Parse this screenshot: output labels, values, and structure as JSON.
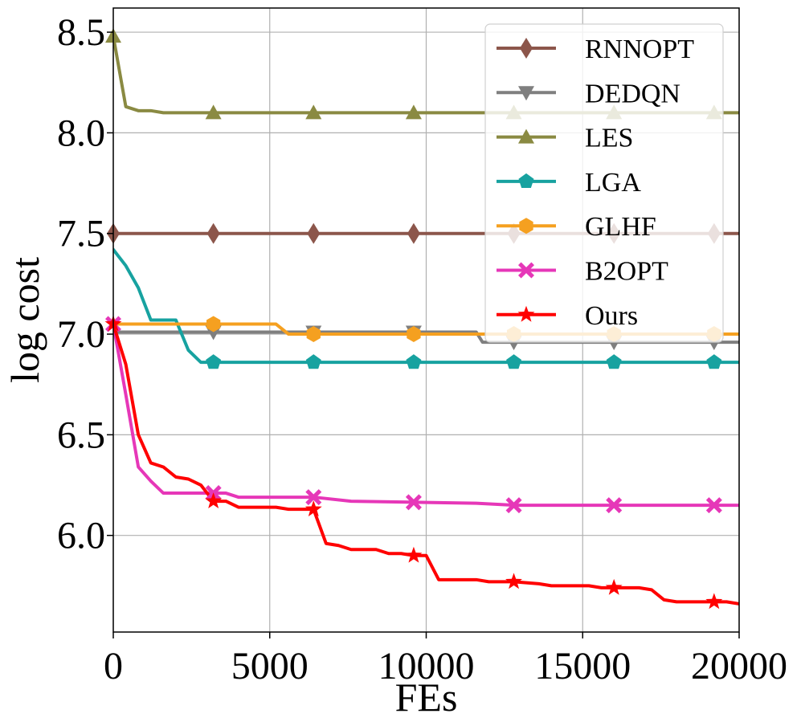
{
  "chart_data": {
    "type": "line",
    "title": "",
    "xlabel": "FEs",
    "ylabel": "log cost",
    "xlim": [
      0,
      20000
    ],
    "ylim": [
      5.52,
      8.62
    ],
    "xticks": [
      0,
      5000,
      10000,
      15000,
      20000
    ],
    "xtick_labels": [
      "0",
      "5000",
      "10000",
      "15000",
      "20000"
    ],
    "yticks": [
      6.0,
      6.5,
      7.0,
      7.5,
      8.0,
      8.5
    ],
    "ytick_labels": [
      "6.0",
      "6.5",
      "7.0",
      "7.5",
      "8.0",
      "8.5"
    ],
    "grid": true,
    "legend_position": "upper-right",
    "series": [
      {
        "name": "RNNOPT",
        "color": "#8c564b",
        "marker": "diamond",
        "points": [
          [
            0,
            7.5
          ],
          [
            20000,
            7.5
          ]
        ],
        "markers_x": [
          0,
          3200,
          6400,
          9600,
          12800,
          16000,
          19200
        ]
      },
      {
        "name": "DEDQN",
        "color": "#7f7f7f",
        "marker": "triangle-down",
        "points": [
          [
            0,
            7.01
          ],
          [
            11600,
            7.01
          ],
          [
            11800,
            6.96
          ],
          [
            20000,
            6.96
          ]
        ],
        "markers_x": [
          3200,
          6400,
          9600,
          12800,
          16000,
          19200
        ]
      },
      {
        "name": "LES",
        "color": "#8a8a42",
        "marker": "triangle-up",
        "points": [
          [
            0,
            8.48
          ],
          [
            400,
            8.13
          ],
          [
            800,
            8.11
          ],
          [
            1200,
            8.11
          ],
          [
            1600,
            8.1
          ],
          [
            2400,
            8.1
          ],
          [
            20000,
            8.1
          ]
        ],
        "markers_x": [
          0,
          3200,
          6400,
          9600,
          12800,
          16000,
          19200
        ]
      },
      {
        "name": "LGA",
        "color": "#17a2a0",
        "marker": "pentagon",
        "points": [
          [
            0,
            7.42
          ],
          [
            400,
            7.34
          ],
          [
            800,
            7.23
          ],
          [
            1200,
            7.07
          ],
          [
            2000,
            7.07
          ],
          [
            2400,
            6.92
          ],
          [
            2800,
            6.86
          ],
          [
            20000,
            6.86
          ]
        ],
        "markers_x": [
          3200,
          6400,
          9600,
          12800,
          16000,
          19200
        ]
      },
      {
        "name": "GLHF",
        "color": "#f5a020",
        "marker": "hexagon",
        "points": [
          [
            0,
            7.05
          ],
          [
            5200,
            7.05
          ],
          [
            5600,
            7.0
          ],
          [
            20000,
            7.0
          ]
        ],
        "markers_x": [
          3200,
          6400,
          9600,
          12800,
          16000,
          19200
        ]
      },
      {
        "name": "B2OPT",
        "color": "#e637b8",
        "marker": "x-filled",
        "points": [
          [
            0,
            7.05
          ],
          [
            400,
            6.7
          ],
          [
            800,
            6.34
          ],
          [
            1200,
            6.27
          ],
          [
            1600,
            6.21
          ],
          [
            3600,
            6.21
          ],
          [
            4000,
            6.19
          ],
          [
            6400,
            6.19
          ],
          [
            7600,
            6.17
          ],
          [
            9600,
            6.165
          ],
          [
            11600,
            6.16
          ],
          [
            12800,
            6.15
          ],
          [
            20000,
            6.15
          ]
        ],
        "markers_x": [
          0,
          3200,
          6400,
          9600,
          12800,
          16000,
          19200
        ]
      },
      {
        "name": "Ours",
        "color": "#ff0000",
        "marker": "star",
        "points": [
          [
            0,
            7.05
          ],
          [
            400,
            6.85
          ],
          [
            800,
            6.5
          ],
          [
            1200,
            6.36
          ],
          [
            1600,
            6.34
          ],
          [
            2000,
            6.29
          ],
          [
            2400,
            6.28
          ],
          [
            2800,
            6.25
          ],
          [
            3200,
            6.17
          ],
          [
            3600,
            6.17
          ],
          [
            4000,
            6.14
          ],
          [
            5200,
            6.14
          ],
          [
            5600,
            6.13
          ],
          [
            6400,
            6.13
          ],
          [
            6800,
            5.96
          ],
          [
            7200,
            5.95
          ],
          [
            7600,
            5.93
          ],
          [
            8400,
            5.93
          ],
          [
            8800,
            5.91
          ],
          [
            9200,
            5.91
          ],
          [
            9600,
            5.9
          ],
          [
            10000,
            5.9
          ],
          [
            10400,
            5.78
          ],
          [
            11600,
            5.78
          ],
          [
            12000,
            5.77
          ],
          [
            12800,
            5.77
          ],
          [
            13600,
            5.76
          ],
          [
            14000,
            5.75
          ],
          [
            15200,
            5.75
          ],
          [
            15600,
            5.74
          ],
          [
            16800,
            5.74
          ],
          [
            17200,
            5.73
          ],
          [
            17600,
            5.68
          ],
          [
            18000,
            5.67
          ],
          [
            19600,
            5.67
          ],
          [
            20000,
            5.66
          ]
        ],
        "markers_x": [
          0,
          3200,
          6400,
          9600,
          12800,
          16000,
          19200
        ]
      }
    ]
  }
}
